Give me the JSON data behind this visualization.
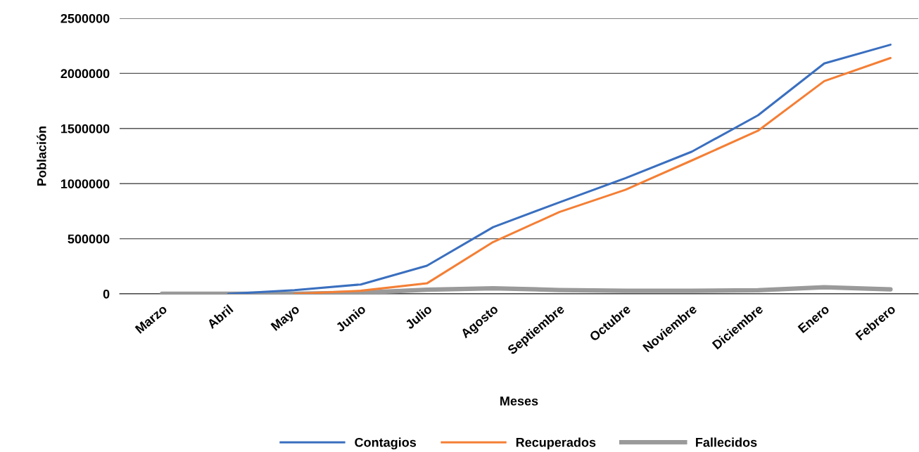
{
  "chart_data": {
    "type": "line",
    "xlabel": "Meses",
    "ylabel": "Población",
    "categories": [
      "Marzo",
      "Abril",
      "Mayo",
      "Junio",
      "Julio",
      "Agosto",
      "Septiembre",
      "Octubre",
      "Noviembre",
      "Diciembre",
      "Enero",
      "Febrero"
    ],
    "ylim": [
      0,
      2500000
    ],
    "yticks": [
      0,
      500000,
      1000000,
      1500000,
      2000000,
      2500000
    ],
    "grid": "y",
    "legend": "bottom",
    "marker": "none",
    "line_style": "solid",
    "series": [
      {
        "name": "Contagios",
        "color": "#3a6fbf",
        "values": [
          null,
          0,
          33000,
          85000,
          255000,
          605000,
          830000,
          1050000,
          1290000,
          1620000,
          2090000,
          2260000
        ]
      },
      {
        "name": "Recuperados",
        "color": "#f47f35",
        "values": [
          null,
          null,
          0,
          28000,
          95000,
          470000,
          742000,
          945000,
          1210000,
          1480000,
          1930000,
          2140000
        ]
      },
      {
        "name": "Fallecidos",
        "color": "#9a9a9a",
        "values": [
          0,
          0,
          0,
          10000,
          37000,
          50000,
          35000,
          28000,
          28000,
          32000,
          60000,
          40000
        ]
      }
    ]
  }
}
